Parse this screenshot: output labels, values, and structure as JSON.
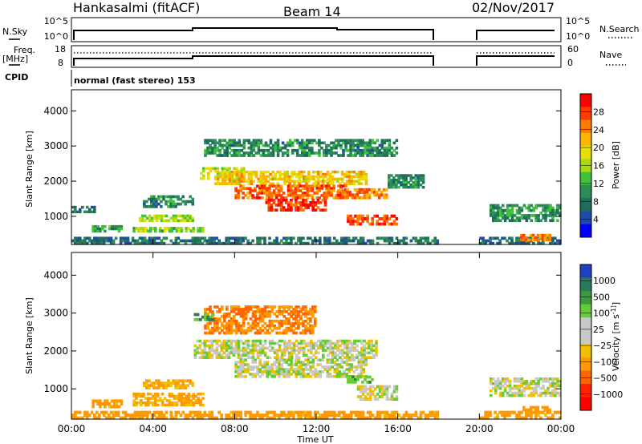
{
  "header": {
    "radar": "Hankasalmi (fitACF)",
    "beam": "Beam 14",
    "date": "02/Nov/2017"
  },
  "noise_panel": {
    "left_label": "N.Sky",
    "y_top": "10^5",
    "y_bottom": "10^0",
    "right_label": "N.Search"
  },
  "freq_panel": {
    "left_label": "Freq.",
    "left_unit": "[MHz]",
    "y_top_left": "18",
    "y_bottom_left": "8",
    "y_top_right": "60",
    "y_bottom_right": "0",
    "right_label": "Nave"
  },
  "cpid": {
    "label": "CPID",
    "value": "normal (fast stereo) 153"
  },
  "chart_data": [
    {
      "type": "heatmap",
      "name": "power",
      "ylabel": "Slant Range [km]",
      "ylim": [
        200,
        4600
      ],
      "yticks": [
        1000,
        2000,
        3000,
        4000
      ],
      "xlim": [
        0,
        24
      ],
      "colorbar_label": "Power [dB]",
      "colorbar_ticks": [
        "28",
        "24",
        "20",
        "16",
        "12",
        "8",
        "4"
      ],
      "colorbar_colors": [
        "#ff0000",
        "#ff3b00",
        "#ff7a00",
        "#ffb400",
        "#e6e000",
        "#a8d810",
        "#3cc23c",
        "#2e8b57",
        "#1e6e5a",
        "#1e4aa8",
        "#0000ff"
      ],
      "data_gap": [
        18.0,
        20.0
      ],
      "regions": [
        {
          "t0": 0.0,
          "t1": 18.0,
          "r0": 200,
          "r1": 420,
          "level": 6
        },
        {
          "t0": 20.0,
          "t1": 24.0,
          "r0": 200,
          "r1": 420,
          "level": 6
        },
        {
          "t0": 0.0,
          "t1": 1.3,
          "r0": 1100,
          "r1": 1300,
          "level": 6
        },
        {
          "t0": 1.0,
          "t1": 2.5,
          "r0": 550,
          "r1": 750,
          "level": 10
        },
        {
          "t0": 3.0,
          "t1": 6.5,
          "r0": 550,
          "r1": 700,
          "level": 14
        },
        {
          "t0": 3.3,
          "t1": 6.0,
          "r0": 850,
          "r1": 1050,
          "level": 15
        },
        {
          "t0": 3.5,
          "t1": 6.0,
          "r0": 1250,
          "r1": 1600,
          "level": 8
        },
        {
          "t0": 6.3,
          "t1": 8.5,
          "r0": 2050,
          "r1": 2400,
          "level": 16
        },
        {
          "t0": 6.5,
          "t1": 16.0,
          "r0": 2700,
          "r1": 3200,
          "level": 8
        },
        {
          "t0": 7.0,
          "t1": 14.5,
          "r0": 1900,
          "r1": 2300,
          "level": 20
        },
        {
          "t0": 8.0,
          "t1": 13.5,
          "r0": 1500,
          "r1": 1900,
          "level": 25
        },
        {
          "t0": 9.5,
          "t1": 12.5,
          "r0": 1150,
          "r1": 1500,
          "level": 28
        },
        {
          "t0": 13.0,
          "t1": 15.5,
          "r0": 1500,
          "r1": 1800,
          "level": 24
        },
        {
          "t0": 13.5,
          "t1": 16.0,
          "r0": 750,
          "r1": 1050,
          "level": 27
        },
        {
          "t0": 15.5,
          "t1": 17.3,
          "r0": 1800,
          "r1": 2200,
          "level": 8
        },
        {
          "t0": 20.5,
          "t1": 24.0,
          "r0": 850,
          "r1": 1350,
          "level": 9
        },
        {
          "t0": 22.0,
          "t1": 23.5,
          "r0": 300,
          "r1": 500,
          "level": 24
        }
      ]
    },
    {
      "type": "heatmap",
      "name": "velocity",
      "ylabel": "Slant Range [km]",
      "ylim": [
        200,
        4600
      ],
      "yticks": [
        1000,
        2000,
        3000,
        4000
      ],
      "xlim": [
        0,
        24
      ],
      "xticks": [
        "00:00",
        "04:00",
        "08:00",
        "12:00",
        "16:00",
        "20:00",
        "00:00"
      ],
      "xlabel": "Time UT",
      "colorbar_label": "Velocity [m s^-1]",
      "colorbar_ticks": [
        "1000",
        "500",
        "100",
        "25",
        "−25",
        "−100",
        "−500",
        "−1000"
      ],
      "colorbar_colors": [
        "#2040c0",
        "#2d7a5a",
        "#3c9a3c",
        "#66cc33",
        "#c8c8c8",
        "#c8c8c8",
        "#f0c000",
        "#ff9900",
        "#ff6600",
        "#ff2200",
        "#ff0000"
      ],
      "data_gap": [
        18.0,
        20.0
      ],
      "regions": [
        {
          "t0": 0.0,
          "t1": 18.0,
          "r0": 200,
          "r1": 420,
          "v": -150
        },
        {
          "t0": 20.0,
          "t1": 24.0,
          "r0": 200,
          "r1": 420,
          "v": -150
        },
        {
          "t0": 1.0,
          "t1": 2.5,
          "r0": 500,
          "r1": 720,
          "v": -150
        },
        {
          "t0": 3.0,
          "t1": 6.5,
          "r0": 550,
          "r1": 900,
          "v": -120
        },
        {
          "t0": 3.5,
          "t1": 6.0,
          "r0": 1000,
          "r1": 1250,
          "v": -100
        },
        {
          "t0": 6.0,
          "t1": 15.0,
          "r0": 1800,
          "r1": 2300,
          "v": 0
        },
        {
          "t0": 8.0,
          "t1": 14.5,
          "r0": 1300,
          "r1": 1800,
          "v": 0
        },
        {
          "t0": 14.0,
          "t1": 16.0,
          "r0": 700,
          "r1": 1100,
          "v": 0
        },
        {
          "t0": 13.5,
          "t1": 14.8,
          "r0": 1150,
          "r1": 1350,
          "v": 80
        },
        {
          "t0": 6.5,
          "t1": 12.0,
          "r0": 2450,
          "r1": 3200,
          "v": -300
        },
        {
          "t0": 6.0,
          "t1": 7.0,
          "r0": 2800,
          "r1": 3000,
          "v": 120
        },
        {
          "t0": 20.5,
          "t1": 24.0,
          "r0": 800,
          "r1": 1300,
          "v": 0
        },
        {
          "t0": 22.0,
          "t1": 23.5,
          "r0": 350,
          "r1": 550,
          "v": -200
        }
      ]
    }
  ]
}
